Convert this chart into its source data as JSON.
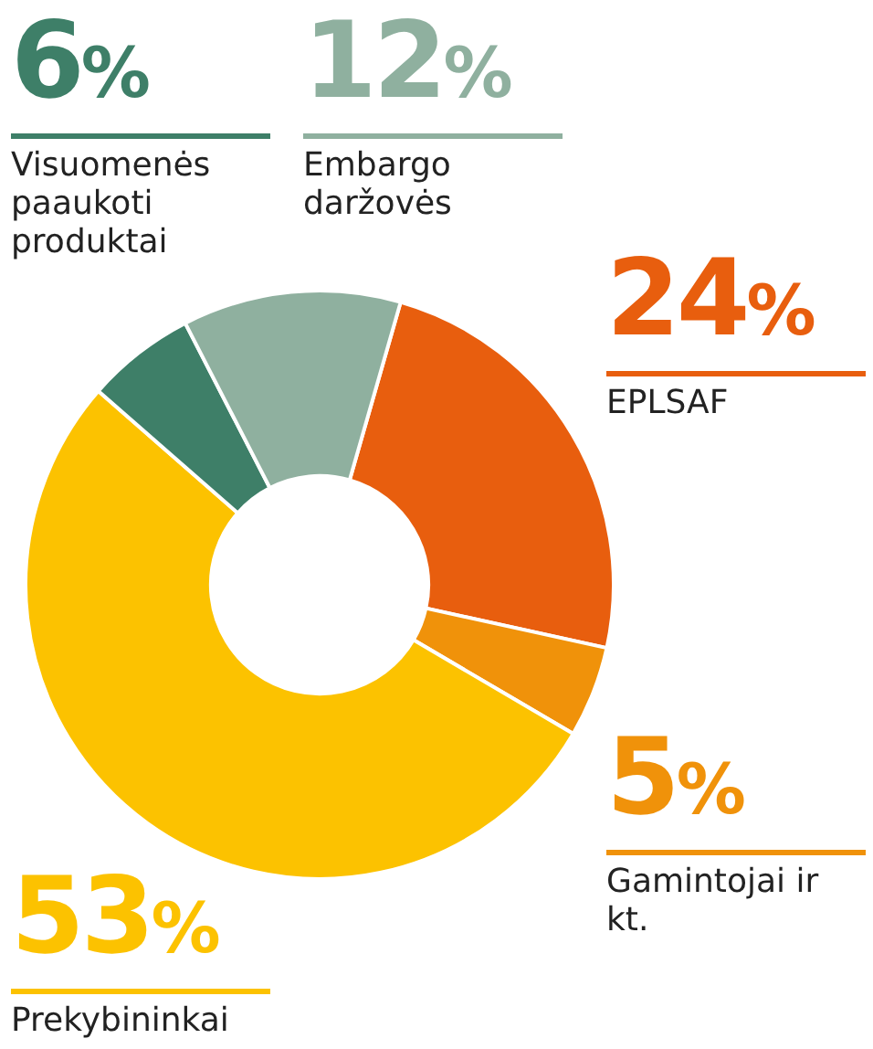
{
  "chart_data": {
    "type": "donut",
    "categories": [
      "EPLSAF",
      "Gamintojai ir kt.",
      "Prekybininkai",
      "Visuomenės paaukoti produktai",
      "Embargo daržovės"
    ],
    "values": [
      24,
      5,
      53,
      6,
      12
    ],
    "value_labels": [
      "24%",
      "5%",
      "53%",
      "6%",
      "12%"
    ],
    "colors": [
      "#e85e0e",
      "#f0920a",
      "#fcc200",
      "#3e7f68",
      "#8fb09f"
    ],
    "legend": false
  }
}
